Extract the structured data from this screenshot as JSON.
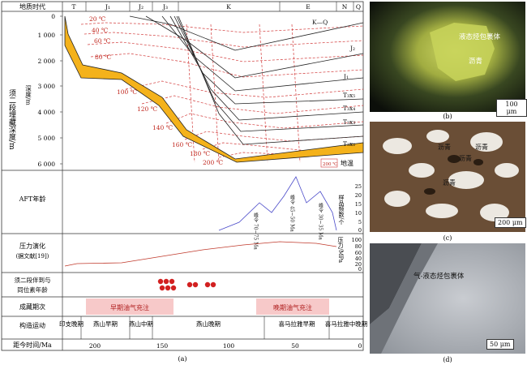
{
  "figure_a": {
    "period_header": "地质时代",
    "periods": [
      "T",
      "J₁",
      "J₂",
      "J₃",
      "K",
      "E",
      "N",
      "Q"
    ],
    "depth_axis_title": "须二段埋藏深度/m",
    "depth_sub": "深度/m",
    "depth_ticks": [
      "0",
      "1 000",
      "2 000",
      "3 000",
      "4 000",
      "5 000",
      "6 000"
    ],
    "temp_labels": [
      "20 ℃",
      "40 ℃",
      "60 ℃",
      "80 ℃",
      "100 ℃",
      "120 ℃",
      "140 ℃",
      "160 ℃",
      "180 ℃",
      "200 ℃"
    ],
    "strata_labels": [
      "K—Q",
      "J₂",
      "J₁",
      "T₃x₅",
      "T₃x₄",
      "T₃x₃",
      "T₃x₂"
    ],
    "legend_temp": "200 ℃",
    "legend_text": "地温",
    "aft_title": "AFT年龄",
    "aft_axis": "样品频数/个",
    "aft_ticks": [
      "25",
      "20",
      "15",
      "10",
      "5",
      "0"
    ],
    "aft_peaks": [
      "峰令 70~75 Ma",
      "峰令 45~50 Ma",
      "峰令 30~35 Ma"
    ],
    "pressure_title": "压力演化",
    "pressure_sub": "(据文献[19])",
    "pressure_axis": "压力/MPa",
    "pressure_ticks": [
      "100",
      "80",
      "60",
      "40",
      "20",
      "0"
    ],
    "inclusion_title": "须二段伴到与",
    "inclusion_title2": "同位素年龄",
    "charge_title": "成藏期次",
    "charge_early": "早期油气充注",
    "charge_late": "晚期油气充注",
    "tectonic_title": "构造运动",
    "tectonic_phases": [
      "印支晚期",
      "燕山早期",
      "燕山中期",
      "燕山晚期",
      "喜马拉雅早期",
      "喜马拉雅中晚期"
    ],
    "time_title": "距今时间/Ma",
    "time_ticks": [
      "200",
      "150",
      "100",
      "50",
      "0"
    ],
    "caption": "(a)"
  },
  "photos": [
    {
      "caption": "(b)",
      "label1": "液态烃包裹体",
      "label2": "沥青",
      "scale": "100 μm"
    },
    {
      "caption": "(c)",
      "label1": "沥青",
      "label2": "沥青",
      "label3": "沥青",
      "label4": "沥青",
      "scale": "200 μm"
    },
    {
      "caption": "(d)",
      "label1": "气-液态烃包裹体",
      "scale": "50 μm"
    }
  ]
}
